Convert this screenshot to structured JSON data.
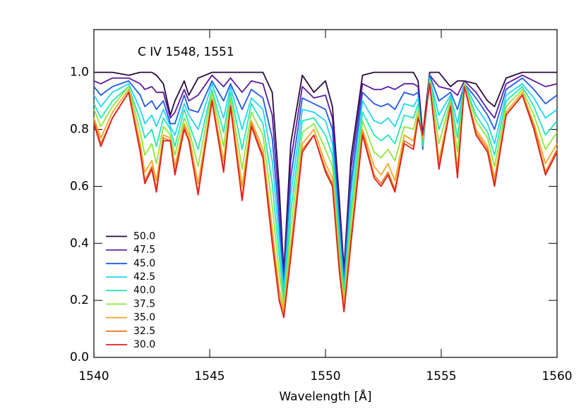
{
  "chart_data": {
    "type": "line",
    "annotation": "C IV 1548, 1551",
    "x_label": "Wavelength [Å]",
    "x": [
      1540.0,
      1540.3,
      1540.8,
      1541.5,
      1542.0,
      1542.2,
      1542.5,
      1542.7,
      1543.0,
      1543.3,
      1543.5,
      1543.9,
      1544.1,
      1544.5,
      1545.1,
      1545.6,
      1545.9,
      1546.4,
      1546.8,
      1547.3,
      1547.7,
      1548.0,
      1548.2,
      1548.5,
      1549.0,
      1549.5,
      1550.0,
      1550.3,
      1550.6,
      1550.8,
      1551.1,
      1551.6,
      1552.1,
      1552.4,
      1552.7,
      1553.0,
      1553.4,
      1553.8,
      1554.0,
      1554.2,
      1554.5,
      1554.9,
      1555.4,
      1555.7,
      1556.0,
      1556.5,
      1557.0,
      1557.3,
      1557.8,
      1558.5,
      1559.0,
      1559.5,
      1560.0
    ],
    "series": [
      {
        "name": "50.0",
        "color": "#2b0a3d",
        "values": [
          1.0,
          1.0,
          1.0,
          0.99,
          1.0,
          1.0,
          1.0,
          0.99,
          0.96,
          0.85,
          0.9,
          0.97,
          0.92,
          0.98,
          1.0,
          1.0,
          1.0,
          1.0,
          1.0,
          1.0,
          0.93,
          0.6,
          0.3,
          0.75,
          0.99,
          0.93,
          0.97,
          0.88,
          0.55,
          0.31,
          0.7,
          0.99,
          1.0,
          1.0,
          1.0,
          1.0,
          1.0,
          1.0,
          0.97,
          0.78,
          1.0,
          1.0,
          0.95,
          0.97,
          0.97,
          0.96,
          0.9,
          0.88,
          0.98,
          1.0,
          1.0,
          1.0,
          1.0
        ]
      },
      {
        "name": "47.5",
        "color": "#5b1aa0",
        "values": [
          0.97,
          0.96,
          0.98,
          0.98,
          0.96,
          0.94,
          0.95,
          0.93,
          0.93,
          0.84,
          0.86,
          0.94,
          0.9,
          0.92,
          0.99,
          0.95,
          0.98,
          0.93,
          0.97,
          0.96,
          0.85,
          0.54,
          0.28,
          0.69,
          0.95,
          0.91,
          0.92,
          0.84,
          0.51,
          0.29,
          0.66,
          0.96,
          0.94,
          0.94,
          0.95,
          0.94,
          0.96,
          0.96,
          0.95,
          0.76,
          0.99,
          0.95,
          0.94,
          0.92,
          0.97,
          0.93,
          0.87,
          0.84,
          0.96,
          0.99,
          0.97,
          0.95,
          0.96
        ]
      },
      {
        "name": "45.0",
        "color": "#1f5ae6",
        "values": [
          0.95,
          0.92,
          0.95,
          0.97,
          0.92,
          0.88,
          0.9,
          0.87,
          0.9,
          0.82,
          0.82,
          0.92,
          0.87,
          0.86,
          0.97,
          0.9,
          0.96,
          0.87,
          0.94,
          0.91,
          0.77,
          0.48,
          0.25,
          0.63,
          0.91,
          0.89,
          0.87,
          0.8,
          0.48,
          0.27,
          0.61,
          0.93,
          0.89,
          0.88,
          0.89,
          0.87,
          0.93,
          0.92,
          0.93,
          0.73,
          0.99,
          0.9,
          0.93,
          0.87,
          0.96,
          0.91,
          0.85,
          0.8,
          0.94,
          0.98,
          0.94,
          0.89,
          0.92
        ]
      },
      {
        "name": "42.5",
        "color": "#1fd6f2",
        "values": [
          0.92,
          0.88,
          0.93,
          0.96,
          0.87,
          0.82,
          0.85,
          0.81,
          0.87,
          0.81,
          0.78,
          0.89,
          0.85,
          0.8,
          0.96,
          0.84,
          0.95,
          0.8,
          0.91,
          0.87,
          0.69,
          0.42,
          0.23,
          0.57,
          0.87,
          0.86,
          0.83,
          0.75,
          0.44,
          0.24,
          0.57,
          0.9,
          0.83,
          0.82,
          0.84,
          0.81,
          0.89,
          0.88,
          0.91,
          0.74,
          0.98,
          0.85,
          0.92,
          0.82,
          0.96,
          0.88,
          0.82,
          0.75,
          0.92,
          0.96,
          0.91,
          0.84,
          0.87
        ]
      },
      {
        "name": "40.0",
        "color": "#22e6b4",
        "values": [
          0.89,
          0.84,
          0.9,
          0.95,
          0.83,
          0.77,
          0.8,
          0.74,
          0.84,
          0.8,
          0.74,
          0.87,
          0.82,
          0.73,
          0.94,
          0.79,
          0.93,
          0.73,
          0.89,
          0.82,
          0.61,
          0.36,
          0.2,
          0.51,
          0.83,
          0.84,
          0.78,
          0.71,
          0.4,
          0.22,
          0.52,
          0.86,
          0.78,
          0.76,
          0.78,
          0.75,
          0.85,
          0.84,
          0.89,
          0.75,
          0.98,
          0.8,
          0.91,
          0.77,
          0.96,
          0.85,
          0.79,
          0.71,
          0.9,
          0.95,
          0.88,
          0.78,
          0.83
        ]
      },
      {
        "name": "37.5",
        "color": "#8ee83a",
        "values": [
          0.87,
          0.81,
          0.88,
          0.95,
          0.79,
          0.71,
          0.75,
          0.68,
          0.81,
          0.78,
          0.71,
          0.84,
          0.8,
          0.67,
          0.93,
          0.74,
          0.91,
          0.66,
          0.86,
          0.78,
          0.53,
          0.3,
          0.18,
          0.45,
          0.79,
          0.82,
          0.73,
          0.67,
          0.36,
          0.2,
          0.48,
          0.83,
          0.72,
          0.7,
          0.73,
          0.69,
          0.81,
          0.8,
          0.87,
          0.76,
          0.97,
          0.75,
          0.9,
          0.72,
          0.96,
          0.83,
          0.77,
          0.67,
          0.88,
          0.94,
          0.85,
          0.73,
          0.79
        ]
      },
      {
        "name": "35.0",
        "color": "#f6a623",
        "values": [
          0.84,
          0.77,
          0.86,
          0.94,
          0.75,
          0.65,
          0.69,
          0.62,
          0.78,
          0.77,
          0.67,
          0.82,
          0.78,
          0.61,
          0.91,
          0.69,
          0.89,
          0.6,
          0.83,
          0.73,
          0.45,
          0.24,
          0.16,
          0.39,
          0.75,
          0.8,
          0.68,
          0.63,
          0.33,
          0.18,
          0.43,
          0.8,
          0.67,
          0.64,
          0.68,
          0.62,
          0.78,
          0.76,
          0.85,
          0.77,
          0.96,
          0.69,
          0.89,
          0.66,
          0.95,
          0.8,
          0.74,
          0.63,
          0.86,
          0.93,
          0.82,
          0.68,
          0.75
        ]
      },
      {
        "name": "32.5",
        "color": "#f07820",
        "values": [
          0.83,
          0.75,
          0.84,
          0.93,
          0.73,
          0.62,
          0.67,
          0.59,
          0.77,
          0.76,
          0.65,
          0.81,
          0.76,
          0.58,
          0.9,
          0.66,
          0.88,
          0.56,
          0.82,
          0.71,
          0.42,
          0.21,
          0.14,
          0.36,
          0.73,
          0.78,
          0.66,
          0.61,
          0.31,
          0.16,
          0.41,
          0.79,
          0.64,
          0.61,
          0.65,
          0.59,
          0.76,
          0.74,
          0.84,
          0.78,
          0.96,
          0.67,
          0.88,
          0.64,
          0.95,
          0.79,
          0.73,
          0.61,
          0.85,
          0.92,
          0.81,
          0.65,
          0.73
        ]
      },
      {
        "name": "30.0",
        "color": "#e0201c",
        "values": [
          0.82,
          0.74,
          0.84,
          0.93,
          0.72,
          0.61,
          0.66,
          0.58,
          0.76,
          0.76,
          0.64,
          0.8,
          0.76,
          0.57,
          0.9,
          0.65,
          0.88,
          0.55,
          0.81,
          0.7,
          0.4,
          0.2,
          0.14,
          0.35,
          0.72,
          0.78,
          0.65,
          0.6,
          0.3,
          0.16,
          0.4,
          0.78,
          0.63,
          0.6,
          0.64,
          0.58,
          0.75,
          0.73,
          0.84,
          0.78,
          0.96,
          0.66,
          0.88,
          0.63,
          0.95,
          0.78,
          0.72,
          0.6,
          0.85,
          0.92,
          0.8,
          0.64,
          0.72
        ]
      }
    ],
    "xlim": [
      1540,
      1560
    ],
    "xticks": [
      1540,
      1545,
      1550,
      1555,
      1560
    ],
    "ylim": [
      0,
      1.15
    ],
    "yticks": [
      {
        "value": 0,
        "label": "0.0"
      },
      0.2,
      0.4,
      0.6,
      0.8,
      {
        "value": 1,
        "label": "1.0"
      }
    ],
    "legend": "lower left",
    "grid": false
  }
}
